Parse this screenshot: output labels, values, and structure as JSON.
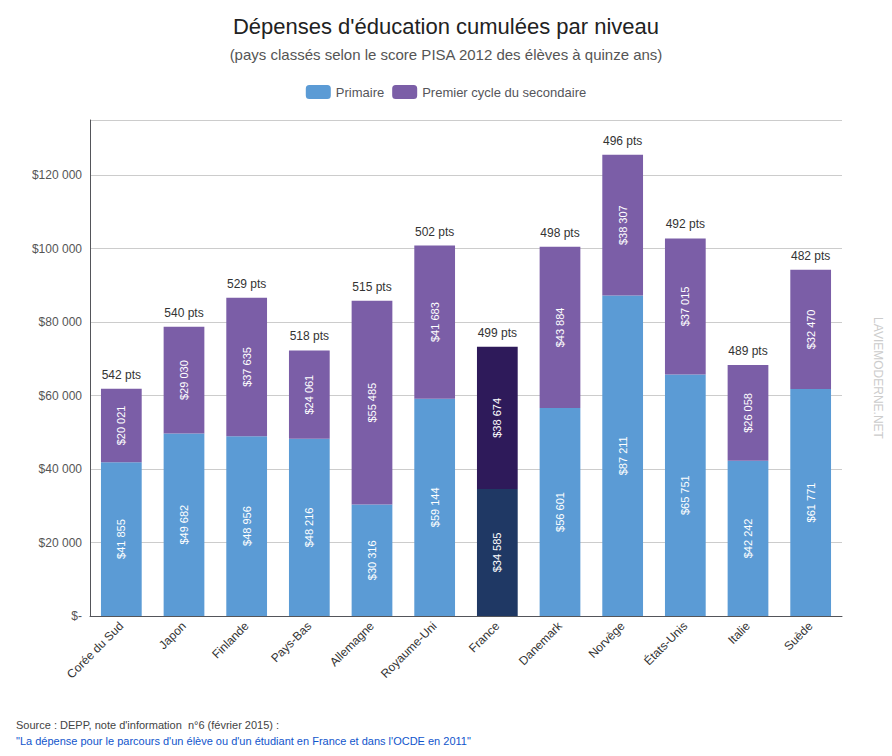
{
  "chart_data": {
    "type": "bar",
    "stacked": true,
    "title": "Dépenses d'éducation cumulées par niveau",
    "subtitle": "(pays classés selon le score PISA 2012 des élèves à quinze ans)",
    "categories": [
      "Corée du Sud",
      "Japon",
      "Finlande",
      "Pays-Bas",
      "Allemagne",
      "Royaume-Uni",
      "France",
      "Danemark",
      "Norvège",
      "États-Unis",
      "Italie",
      "Suède"
    ],
    "series": [
      {
        "name": "Primaire",
        "color": "#5B9BD5",
        "colors": [
          "#5B9BD5",
          "#5B9BD5",
          "#5B9BD5",
          "#5B9BD5",
          "#5B9BD5",
          "#5B9BD5",
          "#1F3864",
          "#5B9BD5",
          "#5B9BD5",
          "#5B9BD5",
          "#5B9BD5",
          "#5B9BD5"
        ],
        "values": [
          41855,
          49682,
          48956,
          48216,
          30316,
          59144,
          34585,
          56601,
          87211,
          65751,
          42242,
          61771
        ],
        "value_labels": [
          "$41 855",
          "$49 682",
          "$48 956",
          "$48 216",
          "$30 316",
          "$59 144",
          "$34 585",
          "$56 601",
          "$87 211",
          "$65 751",
          "$42 242",
          "$61 771"
        ]
      },
      {
        "name": "Premier cycle du secondaire",
        "color": "#7B5EA7",
        "colors": [
          "#7B5EA7",
          "#7B5EA7",
          "#7B5EA7",
          "#7B5EA7",
          "#7B5EA7",
          "#7B5EA7",
          "#2E1A5A",
          "#7B5EA7",
          "#7B5EA7",
          "#7B5EA7",
          "#7B5EA7",
          "#7B5EA7"
        ],
        "values": [
          20021,
          29030,
          37635,
          24061,
          55485,
          41683,
          38674,
          43884,
          38307,
          37015,
          26058,
          32470
        ],
        "value_labels": [
          "$20 021",
          "$29 030",
          "$37 635",
          "$24 061",
          "$55 485",
          "$41 683",
          "$38 674",
          "$43 884",
          "$38 307",
          "$37 015",
          "$26 058",
          "$32 470"
        ]
      }
    ],
    "annotations": [
      "542 pts",
      "540 pts",
      "529 pts",
      "518 pts",
      "515 pts",
      "502 pts",
      "499 pts",
      "498 pts",
      "496 pts",
      "492 pts",
      "489 pts",
      "482 pts"
    ],
    "watermark": "LAVIEMODERNE.NET",
    "source": [
      "Source : DEPP, note d'information  n°6 (février 2015) : ",
      "\"La dépense pour le parcours d'un élève ou d'un étudiant en France et dans l'OCDE en 2011\""
    ],
    "ylim": [
      0,
      135000
    ],
    "yticks": [
      {
        "value": 0,
        "label": "$-"
      },
      {
        "value": 20000,
        "label": "$20 000"
      },
      {
        "value": 40000,
        "label": "$40 000"
      },
      {
        "value": 60000,
        "label": "$60 000"
      },
      {
        "value": 80000,
        "label": "$80 000"
      },
      {
        "value": 100000,
        "label": "$100 000"
      },
      {
        "value": 120000,
        "label": "$120 000"
      }
    ],
    "data_labels": true,
    "grid": true,
    "legend": "top"
  }
}
